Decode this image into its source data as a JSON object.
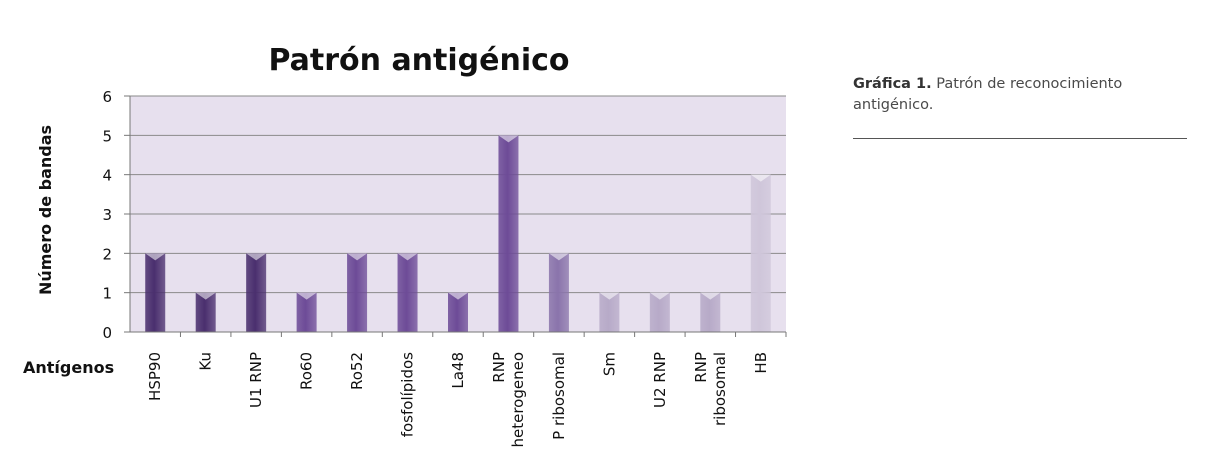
{
  "chart_data": {
    "type": "bar",
    "title": "Patrón antigénico",
    "ylabel": "Número de bandas",
    "xlabel": "Antígenos",
    "ylim": [
      0,
      6
    ],
    "yticks": [
      "0",
      "1",
      "2",
      "3",
      "4",
      "5",
      "6"
    ],
    "categories": [
      [
        "HSP90"
      ],
      [
        "Ku"
      ],
      [
        "U1 RNP"
      ],
      [
        "Ro60"
      ],
      [
        "Ro52"
      ],
      [
        "fosfolípidos"
      ],
      [
        "La48"
      ],
      [
        "RNP",
        "heterogeneo"
      ],
      [
        "P ribosomal"
      ],
      [
        "Sm"
      ],
      [
        "U2 RNP"
      ],
      [
        "RNP",
        "ribosomal"
      ],
      [
        "HB"
      ]
    ],
    "values": [
      2,
      1,
      2,
      1,
      2,
      2,
      1,
      5,
      2,
      1,
      1,
      1,
      4
    ],
    "colors": {
      "dark": "#4a2f6e",
      "mid": "#6d4b97",
      "light_mid": "#8a74ab",
      "light": "#b7aac8",
      "lightest": "#cfc6da",
      "plot_bg": "#e7e0ee",
      "gridline": "#8a8a8a"
    },
    "grid": true,
    "legend": "none"
  },
  "caption": {
    "label": "Gráfica 1.",
    "text": " Patrón de reconocimiento antigénico."
  }
}
